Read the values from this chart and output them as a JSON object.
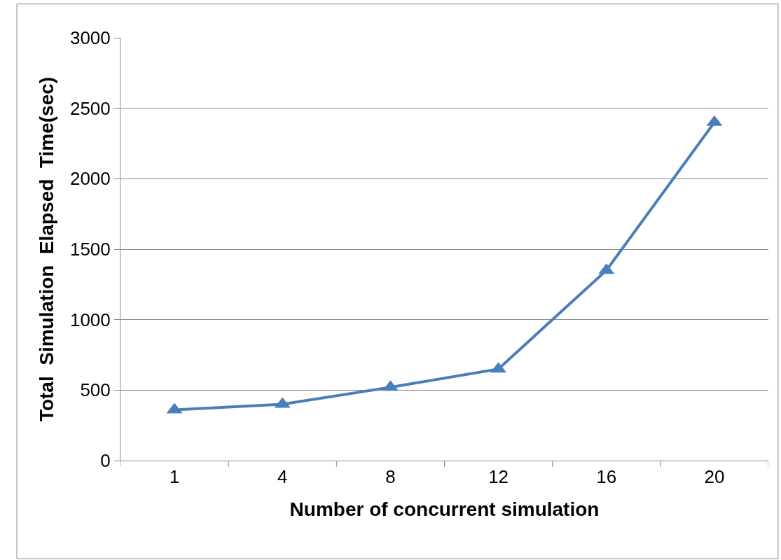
{
  "chart_data": {
    "type": "line",
    "xlabel": "Number of concurrent simulation",
    "ylabel": "Total  Simulation  Elapsed  Time(sec)",
    "categories": [
      "1",
      "4",
      "8",
      "12",
      "16",
      "20"
    ],
    "series": [
      {
        "color": "#4a7ebb",
        "values": [
          360,
          400,
          520,
          650,
          1350,
          2400
        ]
      }
    ],
    "ylim": [
      0,
      3000
    ],
    "yticks": [
      0,
      500,
      1000,
      1500,
      2000,
      2500,
      3000
    ],
    "grid": "y",
    "marker": "triangle",
    "line_style": "solid"
  }
}
